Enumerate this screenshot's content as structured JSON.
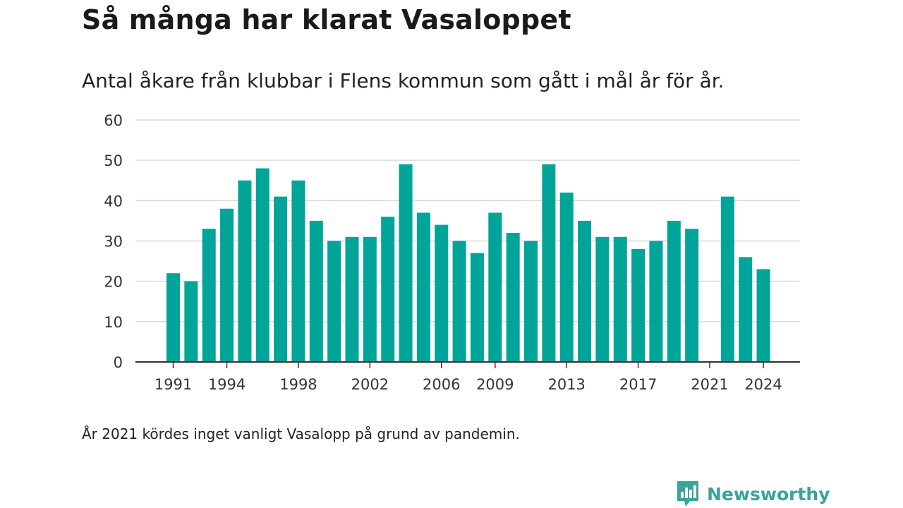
{
  "title": "Så många har klarat Vasaloppet",
  "subtitle": "Antal åkare från klubbar i Flens kommun som gått i mål år för år.",
  "note": "År 2021 kördes inget vanligt Vasalopp på grund av pandemin.",
  "brand": {
    "name": "Newsworthy",
    "icon": "newsworthy-logo-icon"
  },
  "colors": {
    "bar": "#00a499",
    "grid": "#d9d9d9",
    "axis": "#333333"
  },
  "chart_data": {
    "type": "bar",
    "title": "Så många har klarat Vasaloppet",
    "subtitle": "Antal åkare från klubbar i Flens kommun som gått i mål år för år.",
    "xlabel": "",
    "ylabel": "",
    "ylim": [
      0,
      60
    ],
    "yticks": [
      0,
      10,
      20,
      30,
      40,
      50,
      60
    ],
    "xtick_labels": [
      "1991",
      "1994",
      "1998",
      "2002",
      "2006",
      "2009",
      "2013",
      "2017",
      "2021",
      "2024"
    ],
    "grid": true,
    "legend": "none",
    "categories": [
      "1991",
      "1992",
      "1993",
      "1994",
      "1995",
      "1996",
      "1997",
      "1998",
      "1999",
      "2000",
      "2001",
      "2002",
      "2003",
      "2004",
      "2005",
      "2006",
      "2007",
      "2008",
      "2009",
      "2010",
      "2011",
      "2012",
      "2013",
      "2014",
      "2015",
      "2016",
      "2017",
      "2018",
      "2019",
      "2020",
      "2021",
      "2022",
      "2023",
      "2024"
    ],
    "values": [
      22,
      20,
      33,
      38,
      45,
      48,
      41,
      45,
      35,
      30,
      31,
      31,
      36,
      49,
      37,
      34,
      30,
      27,
      37,
      32,
      30,
      49,
      42,
      35,
      31,
      31,
      28,
      30,
      35,
      33,
      null,
      41,
      26,
      23
    ]
  }
}
